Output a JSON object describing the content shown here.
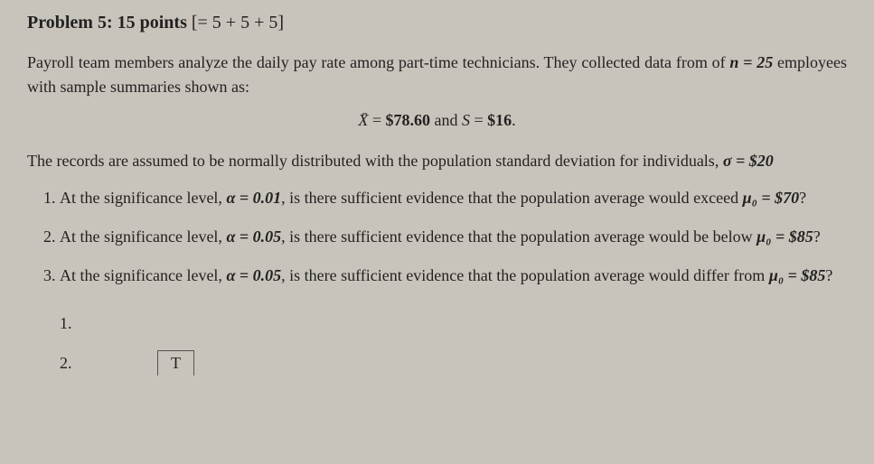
{
  "title_prefix": "Problem 5: 15 points",
  "title_bracket": "[= 5 + 5 + 5]",
  "intro_pre": "Payroll team members analyze the daily pay rate among part-time technicians. They collected data from of ",
  "intro_n": "n = 25",
  "intro_post": " employees with sample summaries shown as:",
  "summary_xbar_sym": "X̄",
  "summary_eq1": " = ",
  "summary_xbar_val": "$78.60",
  "summary_and": "  and  ",
  "summary_s_sym": "S",
  "summary_eq2": " = ",
  "summary_s_val": "$16",
  "summary_dot": ".",
  "para2_pre": "The records are assumed to be normally distributed with the population standard deviation for individuals, ",
  "para2_sigma": "σ = $20",
  "q1_a": "At the significance level, ",
  "q1_alpha": "α = 0.01",
  "q1_b": ", is there sufficient evidence that the population average would exceed ",
  "q1_mu": "μ₀ = $70",
  "q1_c": "?",
  "q2_a": "At the significance level, ",
  "q2_alpha": "α = 0.05",
  "q2_b": ", is there sufficient evidence that the population average would be below ",
  "q2_mu": "μ₀ = $85",
  "q2_c": "?",
  "q3_a": "At the significance level, ",
  "q3_alpha": "α = 0.05",
  "q3_b": ", is there sufficient evidence that the population average would differ from ",
  "q3_mu": "μ₀ = $85",
  "q3_c": "?",
  "ans1": "1.",
  "ans2": "2.",
  "tlabel": "T"
}
